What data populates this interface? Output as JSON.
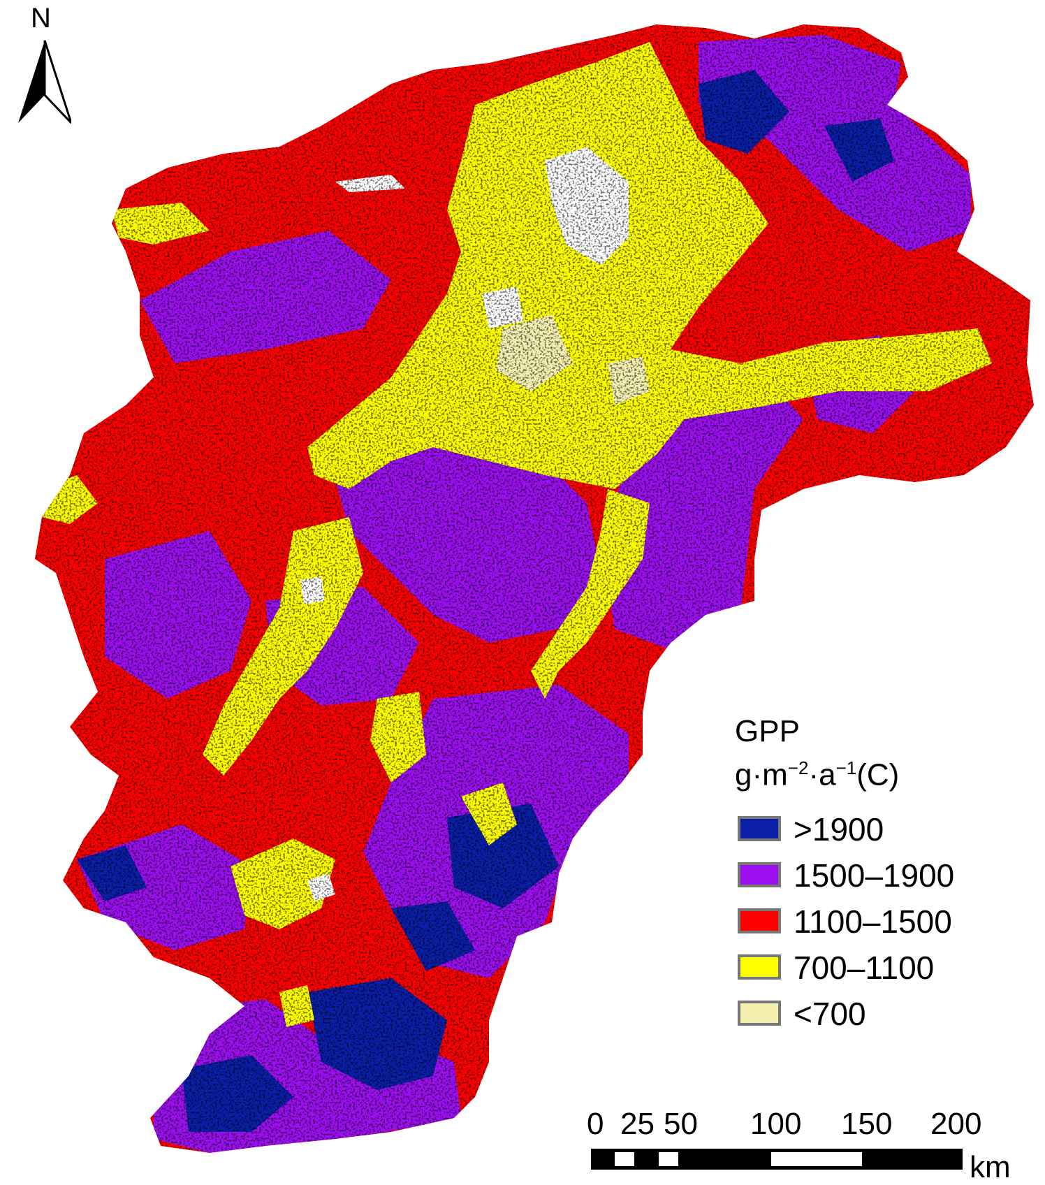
{
  "north_arrow": {
    "label": "N"
  },
  "legend": {
    "title": "GPP",
    "unit_main": "g·m",
    "unit_exp1": "−2",
    "unit_mid": "·a",
    "unit_exp2": "−1",
    "unit_tail": "(C)",
    "items": [
      {
        "label": ">1900",
        "color": "#0a1fa8"
      },
      {
        "label": "1500–1900",
        "color": "#9b0ff0"
      },
      {
        "label": "1100–1500",
        "color": "#ff0000"
      },
      {
        "label": "700–1100",
        "color": "#ffff00"
      },
      {
        "label": "<700",
        "color": "#f3f0b0"
      }
    ]
  },
  "scale_bar": {
    "ticks": [
      "0",
      "25",
      "50",
      "100",
      "150",
      "200"
    ],
    "unit": "km"
  },
  "map_colors": {
    "gt1900": "#0a1fa8",
    "c1500_1900": "#9b0ff0",
    "c1100_1500": "#ff0000",
    "c700_1100": "#ffff00",
    "lt700": "#f3f0b0",
    "nodata": "#ffffff"
  }
}
